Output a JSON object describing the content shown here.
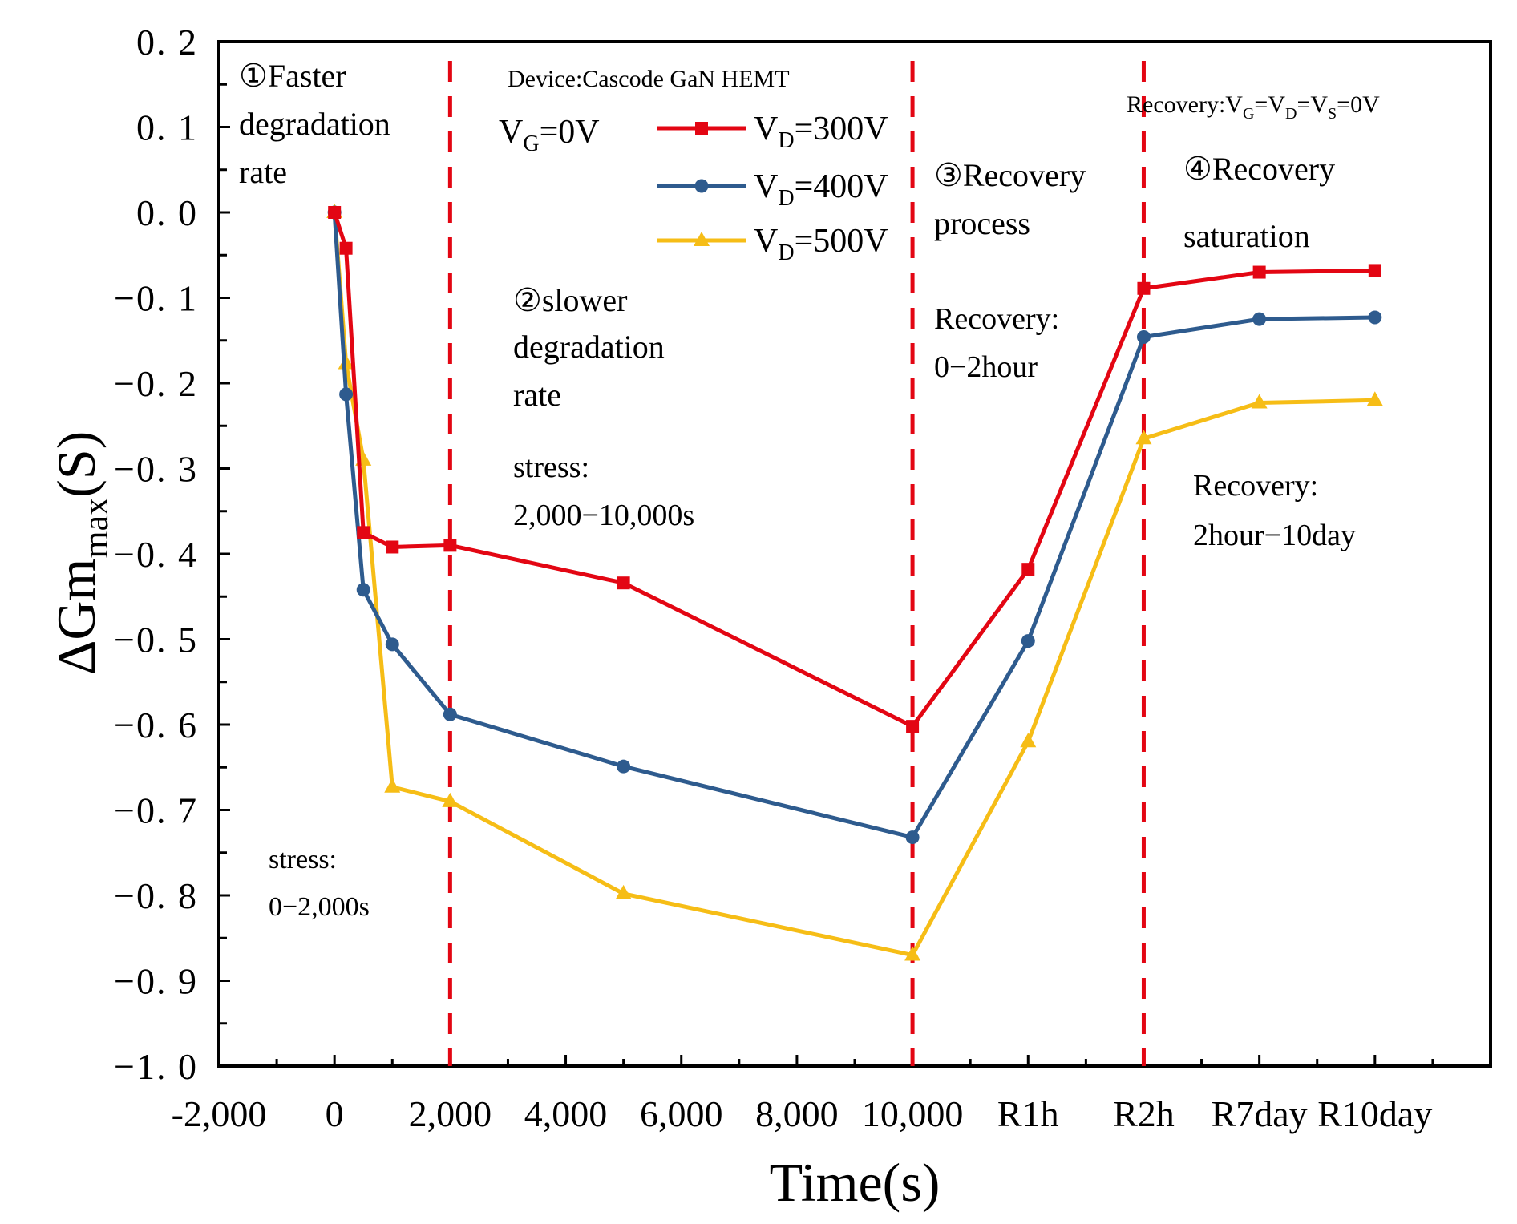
{
  "chart_data": {
    "type": "line",
    "xlabel": "Time(s)",
    "ylabel": "ΔGm",
    "ylabel_sub": "max",
    "ylabel_unit": "(S)",
    "xlim": [
      -2000,
      20000
    ],
    "ylim": [
      -1.0,
      0.2
    ],
    "x_ticks": [
      {
        "value": -2000,
        "label": "-2,000"
      },
      {
        "value": 0,
        "label": "0"
      },
      {
        "value": 2000,
        "label": "2,000"
      },
      {
        "value": 4000,
        "label": "4,000"
      },
      {
        "value": 6000,
        "label": "6,000"
      },
      {
        "value": 8000,
        "label": "8,000"
      },
      {
        "value": 10000,
        "label": "10,000"
      },
      {
        "value": 12000,
        "label": "R1h"
      },
      {
        "value": 14000,
        "label": "R2h"
      },
      {
        "value": 16000,
        "label": "R7day"
      },
      {
        "value": 18000,
        "label": "R10day"
      }
    ],
    "y_ticks": [
      {
        "value": 0.2,
        "label": "0. 2"
      },
      {
        "value": 0.1,
        "label": "0. 1"
      },
      {
        "value": 0.0,
        "label": "0. 0"
      },
      {
        "value": -0.1,
        "label": "−0. 1"
      },
      {
        "value": -0.2,
        "label": "−0. 2"
      },
      {
        "value": -0.3,
        "label": "−0. 3"
      },
      {
        "value": -0.4,
        "label": "−0. 4"
      },
      {
        "value": -0.5,
        "label": "−0. 5"
      },
      {
        "value": -0.6,
        "label": "−0. 6"
      },
      {
        "value": -0.7,
        "label": "−0. 7"
      },
      {
        "value": -0.8,
        "label": "−0. 8"
      },
      {
        "value": -0.9,
        "label": "−0. 9"
      },
      {
        "value": -1.0,
        "label": "−1. 0"
      }
    ],
    "dividers_x": [
      2000,
      10000,
      14000
    ],
    "series": [
      {
        "name": "VD=300V",
        "legend_main": "V",
        "legend_sub": "D",
        "legend_rest": "=300V",
        "color": "#e30613",
        "marker": "square",
        "x": [
          0,
          200,
          500,
          1000,
          2000,
          5000,
          10000,
          12000,
          14000,
          16000,
          18000
        ],
        "y": [
          0.0,
          -0.042,
          -0.375,
          -0.392,
          -0.39,
          -0.434,
          -0.602,
          -0.418,
          -0.089,
          -0.07,
          -0.068
        ]
      },
      {
        "name": "VD=400V",
        "legend_main": "V",
        "legend_sub": "D",
        "legend_rest": "=400V",
        "color": "#2e5b8e",
        "marker": "circle",
        "x": [
          0,
          200,
          500,
          1000,
          2000,
          5000,
          10000,
          12000,
          14000,
          16000,
          18000
        ],
        "y": [
          0.0,
          -0.213,
          -0.442,
          -0.506,
          -0.588,
          -0.649,
          -0.732,
          -0.502,
          -0.146,
          -0.125,
          -0.123
        ]
      },
      {
        "name": "VD=500V",
        "legend_main": "V",
        "legend_sub": "D",
        "legend_rest": "=500V",
        "color": "#f6bd16",
        "marker": "triangle",
        "x": [
          0,
          200,
          500,
          1000,
          2000,
          5000,
          10000,
          12000,
          14000,
          16000,
          18000
        ],
        "y": [
          0.0,
          -0.177,
          -0.29,
          -0.673,
          -0.69,
          -0.798,
          -0.87,
          -0.62,
          -0.265,
          -0.223,
          -0.22
        ]
      }
    ],
    "annotations": {
      "device": "Device:Cascode GaN HEMT",
      "vg_main": "V",
      "vg_sub": "G",
      "vg_rest": "=0V",
      "stage1_l1": "①Faster",
      "stage1_l2": "degradation",
      "stage1_l3": "rate",
      "stage1_stress_l1": "stress:",
      "stage1_stress_l2": "0−2,000s",
      "stage2_l1": "②slower",
      "stage2_l2": "degradation",
      "stage2_l3": "rate",
      "stage2_stress_l1": "stress:",
      "stage2_stress_l2": "2,000−10,000s",
      "stage3_l1": "③Recovery",
      "stage3_l2": "process",
      "stage3_rec_l1": "Recovery:",
      "stage3_rec_l2": "0−2hour",
      "stage4_l1": "④Recovery",
      "stage4_l2": "saturation",
      "stage4_rec_l1": "Recovery:",
      "stage4_rec_l2": "2hour−10day",
      "recovery_cond_a": "Recovery:V",
      "recovery_cond_sub_g": "G",
      "recovery_cond_b": "=V",
      "recovery_cond_sub_d": "D",
      "recovery_cond_c": "=V",
      "recovery_cond_sub_s": "S",
      "recovery_cond_d": "=0V"
    }
  }
}
